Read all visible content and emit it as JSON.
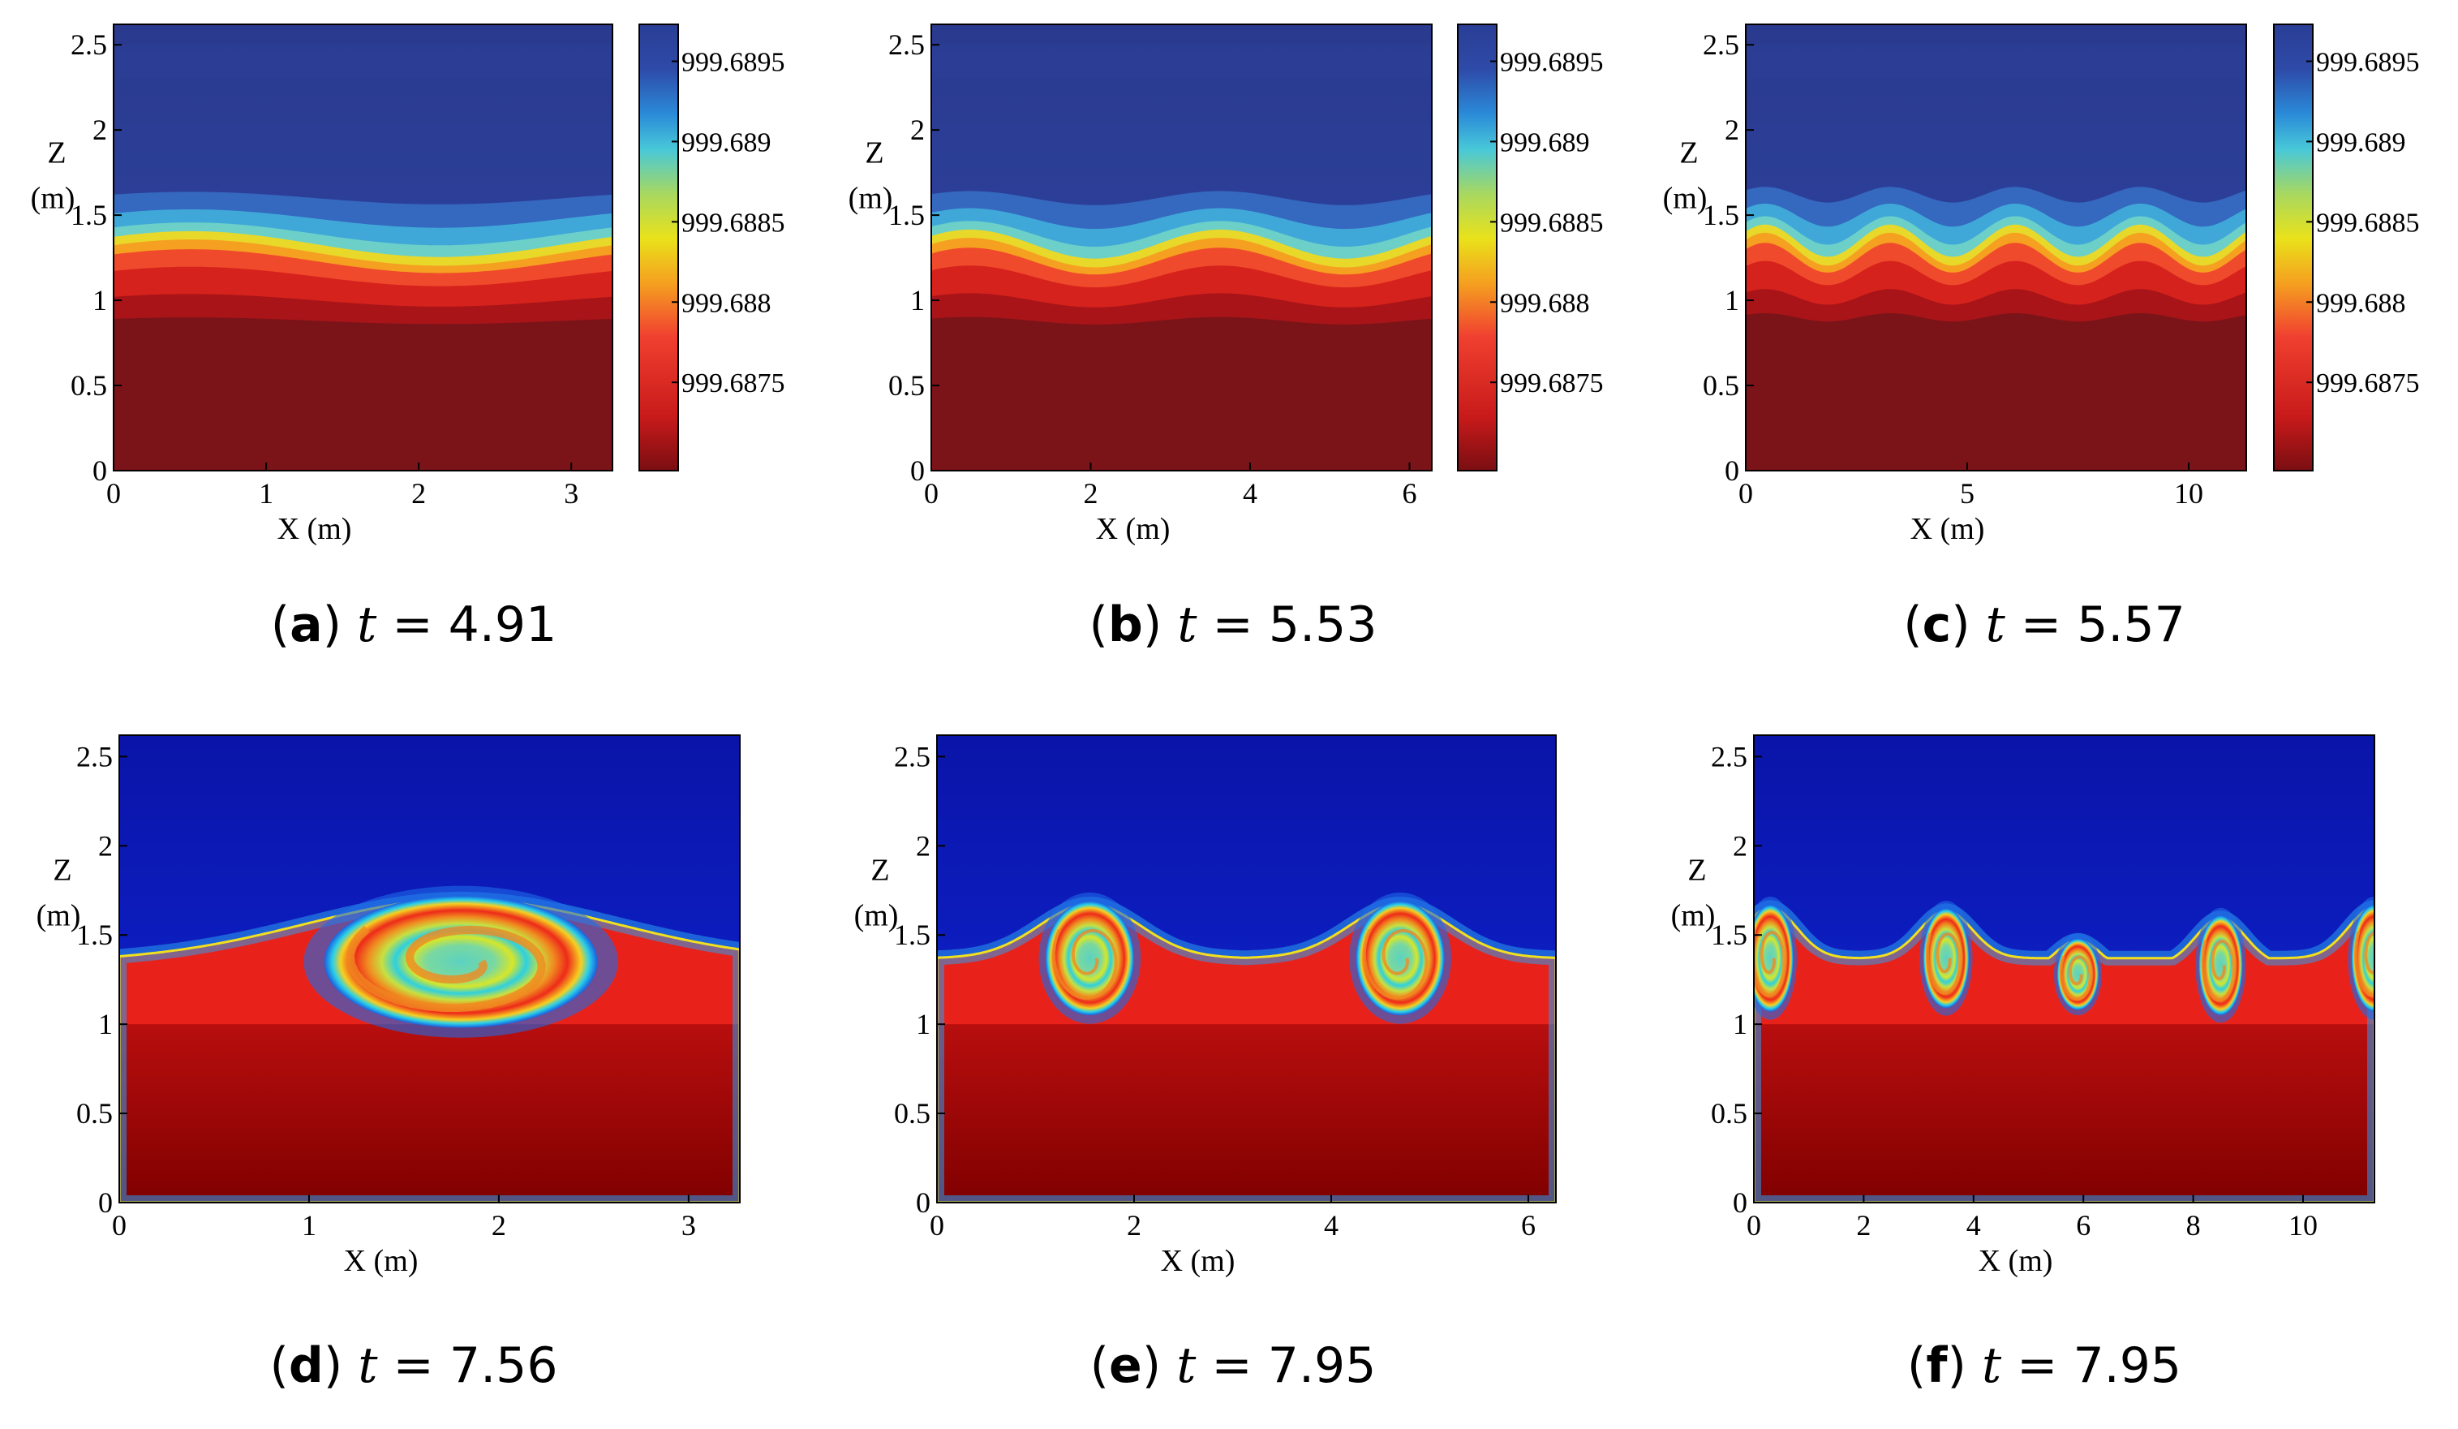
{
  "figure": {
    "xlabel": "X (m)",
    "ylabel_line1": "Z",
    "ylabel_line2": "(m)"
  },
  "chart_data": [
    {
      "id": "a",
      "type": "heatmap",
      "caption_letter": "a",
      "caption_var": "t",
      "caption_eq": "=",
      "caption_value": "4.91",
      "xlim": [
        0,
        3.27
      ],
      "ylim": [
        0,
        2.62
      ],
      "xticks": [
        "0",
        "1",
        "2",
        "3"
      ],
      "xtick_values": [
        0,
        1,
        2,
        3
      ],
      "yticks": [
        "0",
        "0.5",
        "1",
        "1.5",
        "2",
        "2.5"
      ],
      "ytick_values": [
        0,
        0.5,
        1,
        1.5,
        2,
        2.5
      ],
      "colorbar": {
        "labels": [
          "999.6875",
          "999.688",
          "999.6885",
          "999.689",
          "999.6895"
        ],
        "min": 999.68695,
        "max": 999.68973
      },
      "interface": {
        "kind": "wave",
        "mean_z": 1.3,
        "amplitude": 0.08,
        "wavelengths": 1
      }
    },
    {
      "id": "b",
      "type": "heatmap",
      "caption_letter": "b",
      "caption_var": "t",
      "caption_eq": "=",
      "caption_value": "5.53",
      "xlim": [
        0,
        6.28
      ],
      "ylim": [
        0,
        2.62
      ],
      "xticks": [
        "0",
        "2",
        "4",
        "6"
      ],
      "xtick_values": [
        0,
        2,
        4,
        6
      ],
      "yticks": [
        "0",
        "0.5",
        "1",
        "1.5",
        "2",
        "2.5"
      ],
      "ytick_values": [
        0,
        0.5,
        1,
        1.5,
        2,
        2.5
      ],
      "colorbar": {
        "labels": [
          "999.6875",
          "999.688",
          "999.6885",
          "999.689",
          "999.6895"
        ],
        "min": 999.68695,
        "max": 999.68973
      },
      "interface": {
        "kind": "wave",
        "mean_z": 1.3,
        "amplitude": 0.09,
        "wavelengths": 2
      }
    },
    {
      "id": "c",
      "type": "heatmap",
      "caption_letter": "c",
      "caption_var": "t",
      "caption_eq": "=",
      "caption_value": "5.57",
      "xlim": [
        0,
        11.3
      ],
      "ylim": [
        0,
        2.62
      ],
      "xticks": [
        "0",
        "5",
        "10"
      ],
      "xtick_values": [
        0,
        5,
        10
      ],
      "yticks": [
        "0",
        "0.5",
        "1",
        "1.5",
        "2",
        "2.5"
      ],
      "ytick_values": [
        0,
        0.5,
        1,
        1.5,
        2,
        2.5
      ],
      "colorbar": {
        "labels": [
          "999.6875",
          "999.688",
          "999.6885",
          "999.689",
          "999.6895"
        ],
        "min": 999.68695,
        "max": 999.68973
      },
      "interface": {
        "kind": "wave",
        "mean_z": 1.32,
        "amplitude": 0.1,
        "wavelengths": 4
      }
    },
    {
      "id": "d",
      "type": "heatmap",
      "caption_letter": "d",
      "caption_var": "t",
      "caption_eq": "=",
      "caption_value": "7.56",
      "xlim": [
        0,
        3.27
      ],
      "ylim": [
        0,
        2.62
      ],
      "xticks": [
        "0",
        "1",
        "2",
        "3"
      ],
      "xtick_values": [
        0,
        1,
        2,
        3
      ],
      "yticks": [
        "0",
        "0.5",
        "1",
        "1.5",
        "2",
        "2.5"
      ],
      "ytick_values": [
        0,
        0.5,
        1,
        1.5,
        2,
        2.5
      ],
      "vortices": [
        {
          "x": 1.8,
          "z": 1.35,
          "rx": 0.72,
          "rz": 0.37
        }
      ]
    },
    {
      "id": "e",
      "type": "heatmap",
      "caption_letter": "e",
      "caption_var": "t",
      "caption_eq": "=",
      "caption_value": "7.95",
      "xlim": [
        0,
        6.28
      ],
      "ylim": [
        0,
        2.62
      ],
      "xticks": [
        "0",
        "2",
        "4",
        "6"
      ],
      "xtick_values": [
        0,
        2,
        4,
        6
      ],
      "yticks": [
        "0",
        "0.5",
        "1",
        "1.5",
        "2",
        "2.5"
      ],
      "ytick_values": [
        0,
        0.5,
        1,
        1.5,
        2,
        2.5
      ],
      "vortices": [
        {
          "x": 1.55,
          "z": 1.37,
          "rx": 0.45,
          "rz": 0.32
        },
        {
          "x": 4.7,
          "z": 1.37,
          "rx": 0.45,
          "rz": 0.32
        }
      ]
    },
    {
      "id": "f",
      "type": "heatmap",
      "caption_letter": "f",
      "caption_var": "t",
      "caption_eq": "=",
      "caption_value": "7.95",
      "xlim": [
        0,
        11.3
      ],
      "ylim": [
        0,
        2.62
      ],
      "xticks": [
        "0",
        "2",
        "4",
        "6",
        "8",
        "10"
      ],
      "xtick_values": [
        0,
        2,
        4,
        6,
        8,
        10
      ],
      "yticks": [
        "0",
        "0.5",
        "1",
        "1.5",
        "2",
        "2.5"
      ],
      "ytick_values": [
        0,
        0.5,
        1,
        1.5,
        2,
        2.5
      ],
      "vortices": [
        {
          "x": 0.3,
          "z": 1.37,
          "rx": 0.42,
          "rz": 0.3
        },
        {
          "x": 3.5,
          "z": 1.37,
          "rx": 0.42,
          "rz": 0.28
        },
        {
          "x": 5.9,
          "z": 1.28,
          "rx": 0.38,
          "rz": 0.2
        },
        {
          "x": 8.5,
          "z": 1.33,
          "rx": 0.4,
          "rz": 0.28
        },
        {
          "x": 11.3,
          "z": 1.37,
          "rx": 0.42,
          "rz": 0.3
        }
      ]
    }
  ]
}
